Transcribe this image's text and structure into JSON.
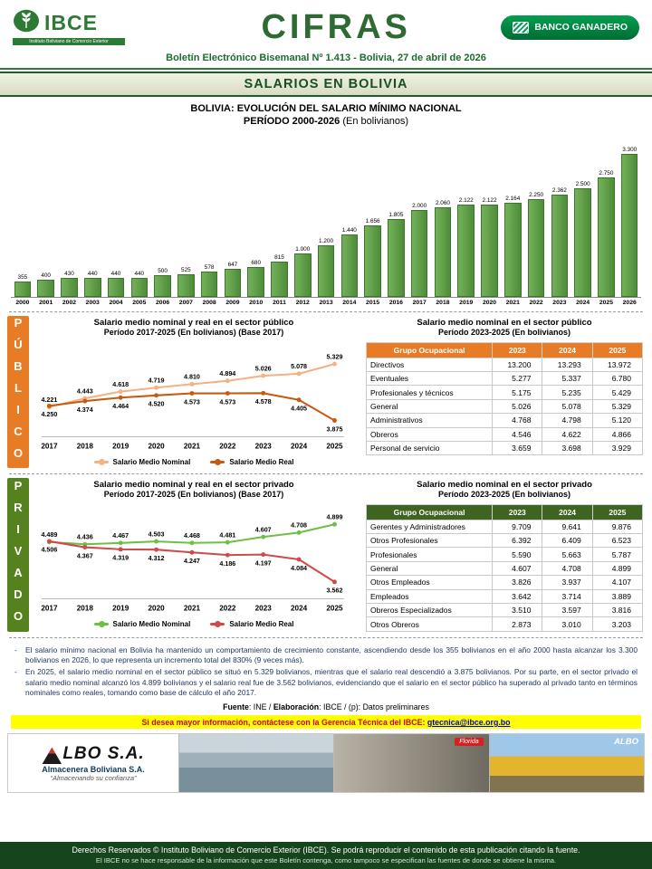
{
  "header": {
    "logo": {
      "name": "IBCE",
      "tagline": "Instituto Boliviano de Comercio Exterior"
    },
    "title": "CIFRAS",
    "sponsor": "BANCO GANADERO",
    "subtitle": "Boletín Electrónico Bisemanal Nº 1.413 - Bolivia, 27 de abril de 2026"
  },
  "banner": {
    "title": "SALARIOS EN BOLIVIA"
  },
  "min_wage_chart": {
    "title_line1": "BOLIVIA: EVOLUCIÓN DEL SALARIO MÍNIMO NACIONAL",
    "title_line2_bold": "PERÍODO 2000-2026",
    "title_line2_normal": " (En bolivianos)"
  },
  "public_section": {
    "side_label": "PÚBLICO",
    "chart_title": "Salario medio nominal y real en el sector público",
    "chart_subtitle": "Período 2017-2025 (En bolivianos) (Base 2017)",
    "table_title": "Salario medio nominal en el sector público",
    "table_subtitle": "Período 2023-2025 (En bolivianos)",
    "table": {
      "columns": [
        "Grupo Ocupacional",
        "2023",
        "2024",
        "2025"
      ],
      "rows": [
        [
          "Directivos",
          "13.200",
          "13.293",
          "13.972"
        ],
        [
          "Eventuales",
          "5.277",
          "5.337",
          "6.780"
        ],
        [
          "Profesionales y técnicos",
          "5.175",
          "5.235",
          "5.429"
        ],
        [
          "General",
          "5.026",
          "5.078",
          "5.329"
        ],
        [
          "Administrativos",
          "4.768",
          "4.798",
          "5.120"
        ],
        [
          "Obreros",
          "4.546",
          "4.622",
          "4.866"
        ],
        [
          "Personal de servicio",
          "3.659",
          "3.698",
          "3.929"
        ]
      ]
    }
  },
  "private_section": {
    "side_label": "PRIVADO",
    "chart_title": "Salario medio nominal y real en el sector privado",
    "chart_subtitle": "Período 2017-2025 (En bolivianos) (Base 2017)",
    "table_title": "Salario medio nominal en el sector privado",
    "table_subtitle": "Período 2023-2025 (En bolivianos)",
    "table": {
      "columns": [
        "Grupo Ocupacional",
        "2023",
        "2024",
        "2025"
      ],
      "rows": [
        [
          "Gerentes y Administradores",
          "9.709",
          "9.641",
          "9.876"
        ],
        [
          "Otros Profesionales",
          "6.392",
          "6.409",
          "6.523"
        ],
        [
          "Profesionales",
          "5.590",
          "5.663",
          "5.787"
        ],
        [
          "General",
          "4.607",
          "4.708",
          "4.899"
        ],
        [
          "Otros Empleados",
          "3.826",
          "3.937",
          "4.107"
        ],
        [
          "Empleados",
          "3.642",
          "3.714",
          "3.889"
        ],
        [
          "Obreros Especializados",
          "3.510",
          "3.597",
          "3.816"
        ],
        [
          "Otros Obreros",
          "2.873",
          "3.010",
          "3.203"
        ]
      ]
    }
  },
  "notes": [
    "El salario mínimo nacional en Bolivia ha mantenido un comportamiento de crecimiento constante, ascendiendo desde los 355 bolivianos en el año 2000 hasta alcanzar los 3.300 bolivianos en 2026, lo que representa un incremento total del 830% (9 veces más).",
    "En 2025, el salario medio nominal en el sector público se situó en 5.329 bolivianos, mientras que el salario real descendió a 3.875 bolivianos. Por su parte, en el sector privado el salario medio nominal alcanzó los 4.899 bolivianos y el salario real fue de 3.562 bolivianos, evidenciando que el salario en el sector público ha superado al privado tanto en términos nominales como reales, tomando como base de cálculo el año 2017."
  ],
  "source": {
    "label1": "Fuente",
    "value1": ":  INE / ",
    "label2": "Elaboración",
    "value2": ": IBCE / (p): Datos preliminares"
  },
  "contact": {
    "text": "Si desea mayor información, contáctese con la Gerencia Técnica del IBCE: ",
    "email": "gtecnica@ibce.org.bo"
  },
  "ad": {
    "brand": "LBO S.A.",
    "company": "Almacenera Boliviana S.A.",
    "slogan": "“Almacenando su confianza”",
    "photo_label": "Florida",
    "brand_watermark": "ALBO"
  },
  "footer": {
    "line1": "Derechos Reservados © Instituto Boliviano de Comercio Exterior (IBCE). Se podrá reproducir el contenido de esta publicación citando la fuente.",
    "line2": "El IBCE no se hace responsable de la información que este Boletín contenga, como tampoco se especifican las fuentes de donde se obtiene la misma."
  },
  "colors": {
    "brand_green": "#2d7a35",
    "band_green": "#1d5c2a",
    "bar_green": "#5a9a44",
    "public_orange": "#e87c26",
    "private_green": "#55821f",
    "footer_green": "#16451d",
    "contact_yellow": "#ffff00"
  },
  "chart_data": [
    {
      "type": "bar",
      "title": "BOLIVIA: EVOLUCIÓN DEL SALARIO MÍNIMO NACIONAL PERÍODO 2000-2026 (En bolivianos)",
      "categories": [
        "2000",
        "2001",
        "2002",
        "2003",
        "2004",
        "2005",
        "2006",
        "2007",
        "2008",
        "2009",
        "2010",
        "2011",
        "2012",
        "2013",
        "2014",
        "2015",
        "2016",
        "2017",
        "2018",
        "2019",
        "2020",
        "2021",
        "2022",
        "2023",
        "2024",
        "2025",
        "2026"
      ],
      "values": [
        355,
        400,
        430,
        440,
        440,
        440,
        500,
        525,
        578,
        647,
        680,
        815,
        1000,
        1200,
        1440,
        1656,
        1805,
        2000,
        2060,
        2122,
        2122,
        2164,
        2250,
        2362,
        2500,
        2750,
        3300
      ],
      "labels": [
        "355",
        "400",
        "430",
        "440",
        "440",
        "440",
        "500",
        "525",
        "578",
        "647",
        "680",
        "815",
        "1.000",
        "1.200",
        "1.440",
        "1.656",
        "1.805",
        "2.000",
        "2.060",
        "2.122",
        "2.122",
        "2.164",
        "2.250",
        "2.362",
        "2.500",
        "2.750",
        "3.300"
      ],
      "xlabel": "",
      "ylabel": "Bolivianos",
      "ylim": [
        0,
        3300
      ]
    },
    {
      "type": "line",
      "title": "Salario medio nominal y real en el sector público Período 2017-2025 (En bolivianos) (Base 2017)",
      "categories": [
        "2017",
        "2018",
        "2019",
        "2020",
        "2021",
        "2022",
        "2023",
        "2024",
        "2025"
      ],
      "ylim": [
        3600,
        5650
      ],
      "legend_position": "bottom",
      "series": [
        {
          "name": "Salario Medio Nominal",
          "color": "#f4b183",
          "label_pos": "above",
          "values": [
            4221,
            4443,
            4618,
            4719,
            4810,
            4894,
            5026,
            5078,
            5329
          ],
          "labels": [
            "4.221",
            "4.443",
            "4.618",
            "4.719",
            "4.810",
            "4.894",
            "5.026",
            "5.078",
            "5.329"
          ]
        },
        {
          "name": "Salario Medio Real",
          "color": "#c55a11",
          "label_pos": "below",
          "values": [
            4250,
            4374,
            4464,
            4520,
            4573,
            4573,
            4578,
            4405,
            3875
          ],
          "labels": [
            "4.250",
            "4.374",
            "4.464",
            "4.520",
            "4.573",
            "4.573",
            "4.578",
            "4.405",
            "3.875"
          ]
        }
      ]
    },
    {
      "type": "line",
      "title": "Salario medio nominal y real en el sector privado Período 2017-2025 (En bolivianos) (Base 2017)",
      "categories": [
        "2017",
        "2018",
        "2019",
        "2020",
        "2021",
        "2022",
        "2023",
        "2024",
        "2025"
      ],
      "ylim": [
        3300,
        5150
      ],
      "legend_position": "bottom",
      "series": [
        {
          "name": "Salario Medio Nominal",
          "color": "#6fbf44",
          "label_pos": "above",
          "values": [
            4489,
            4436,
            4467,
            4503,
            4468,
            4481,
            4607,
            4708,
            4899
          ],
          "labels": [
            "4.489",
            "4.436",
            "4.467",
            "4.503",
            "4.468",
            "4.481",
            "4.607",
            "4.708",
            "4.899"
          ]
        },
        {
          "name": "Salario Medio Real",
          "color": "#cf4a4a",
          "label_pos": "below",
          "values": [
            4506,
            4367,
            4319,
            4312,
            4247,
            4186,
            4197,
            4084,
            3562
          ],
          "labels": [
            "4.506",
            "4.367",
            "4.319",
            "4.312",
            "4.247",
            "4.186",
            "4.197",
            "4.084",
            "3.562"
          ]
        }
      ]
    }
  ]
}
